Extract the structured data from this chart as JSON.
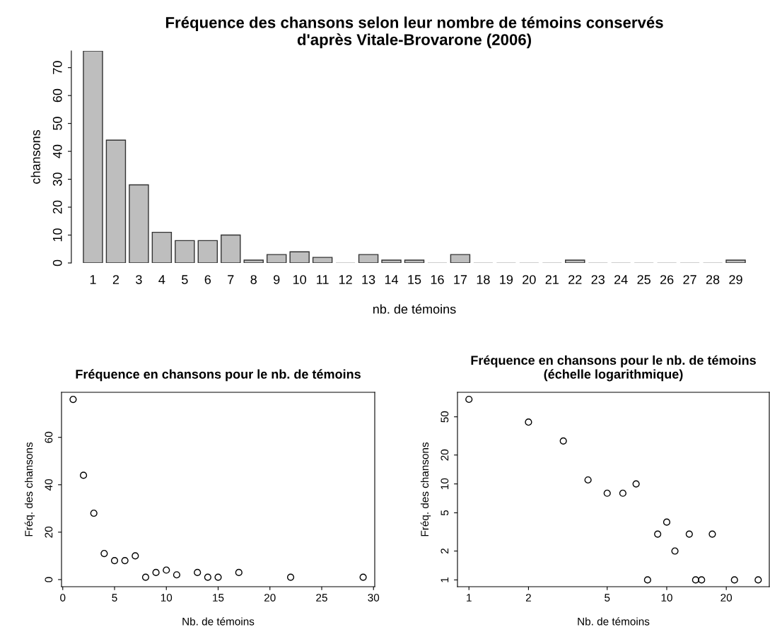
{
  "chart_data": [
    {
      "type": "bar",
      "title": "Fréquence des chansons selon leur nombre de témoins conservés\nd'après Vitale-Brovarone (2006)",
      "xlabel": "nb. de témoins",
      "ylabel": "chansons",
      "categories": [
        "1",
        "2",
        "3",
        "4",
        "5",
        "6",
        "7",
        "8",
        "9",
        "10",
        "11",
        "12",
        "13",
        "14",
        "15",
        "16",
        "17",
        "18",
        "19",
        "20",
        "21",
        "22",
        "23",
        "24",
        "25",
        "26",
        "27",
        "28",
        "29"
      ],
      "values": [
        76,
        44,
        28,
        11,
        8,
        8,
        10,
        1,
        3,
        4,
        2,
        0,
        3,
        1,
        1,
        0,
        3,
        0,
        0,
        0,
        0,
        1,
        0,
        0,
        0,
        0,
        0,
        0,
        1
      ],
      "color": "#bebebe",
      "ylim": [
        0,
        76
      ],
      "yticks": [
        0,
        10,
        20,
        30,
        40,
        50,
        60,
        70
      ],
      "grid": false
    },
    {
      "type": "scatter",
      "title": "Fréquence en chansons pour le nb. de témoins",
      "xlabel": "Nb. de témoins",
      "ylabel": "Fréq. des chansons",
      "x": [
        1,
        2,
        3,
        4,
        5,
        6,
        7,
        8,
        9,
        10,
        11,
        13,
        14,
        15,
        17,
        22,
        29
      ],
      "values": [
        76,
        44,
        28,
        11,
        8,
        8,
        10,
        1,
        3,
        4,
        2,
        3,
        1,
        1,
        3,
        1,
        1
      ],
      "color": "#000000",
      "marker": "circle",
      "xlim": [
        -0.12,
        30.12
      ],
      "ylim": [
        -3,
        79
      ],
      "xticks": [
        0,
        5,
        10,
        15,
        20,
        25,
        30
      ],
      "yticks": [
        0,
        20,
        40,
        60
      ],
      "grid": false
    },
    {
      "type": "scatter",
      "title": "Fréquence en chansons pour le nb. de témoins\n(échelle logarithmique)",
      "xlabel": "Nb. de témoins",
      "ylabel": "Fréq. des chansons",
      "x": [
        1,
        2,
        3,
        4,
        5,
        6,
        7,
        8,
        9,
        10,
        11,
        13,
        14,
        15,
        17,
        22,
        29
      ],
      "values": [
        76,
        44,
        28,
        11,
        8,
        8,
        10,
        1,
        3,
        4,
        2,
        3,
        1,
        1,
        3,
        1,
        1
      ],
      "color": "#000000",
      "marker": "circle",
      "log": "xy",
      "xlim": [
        0.875,
        33
      ],
      "ylim": [
        0.85,
        90
      ],
      "xticks": [
        1,
        2,
        5,
        10,
        20
      ],
      "yticks": [
        1,
        2,
        5,
        10,
        20,
        50
      ],
      "grid": false
    }
  ]
}
